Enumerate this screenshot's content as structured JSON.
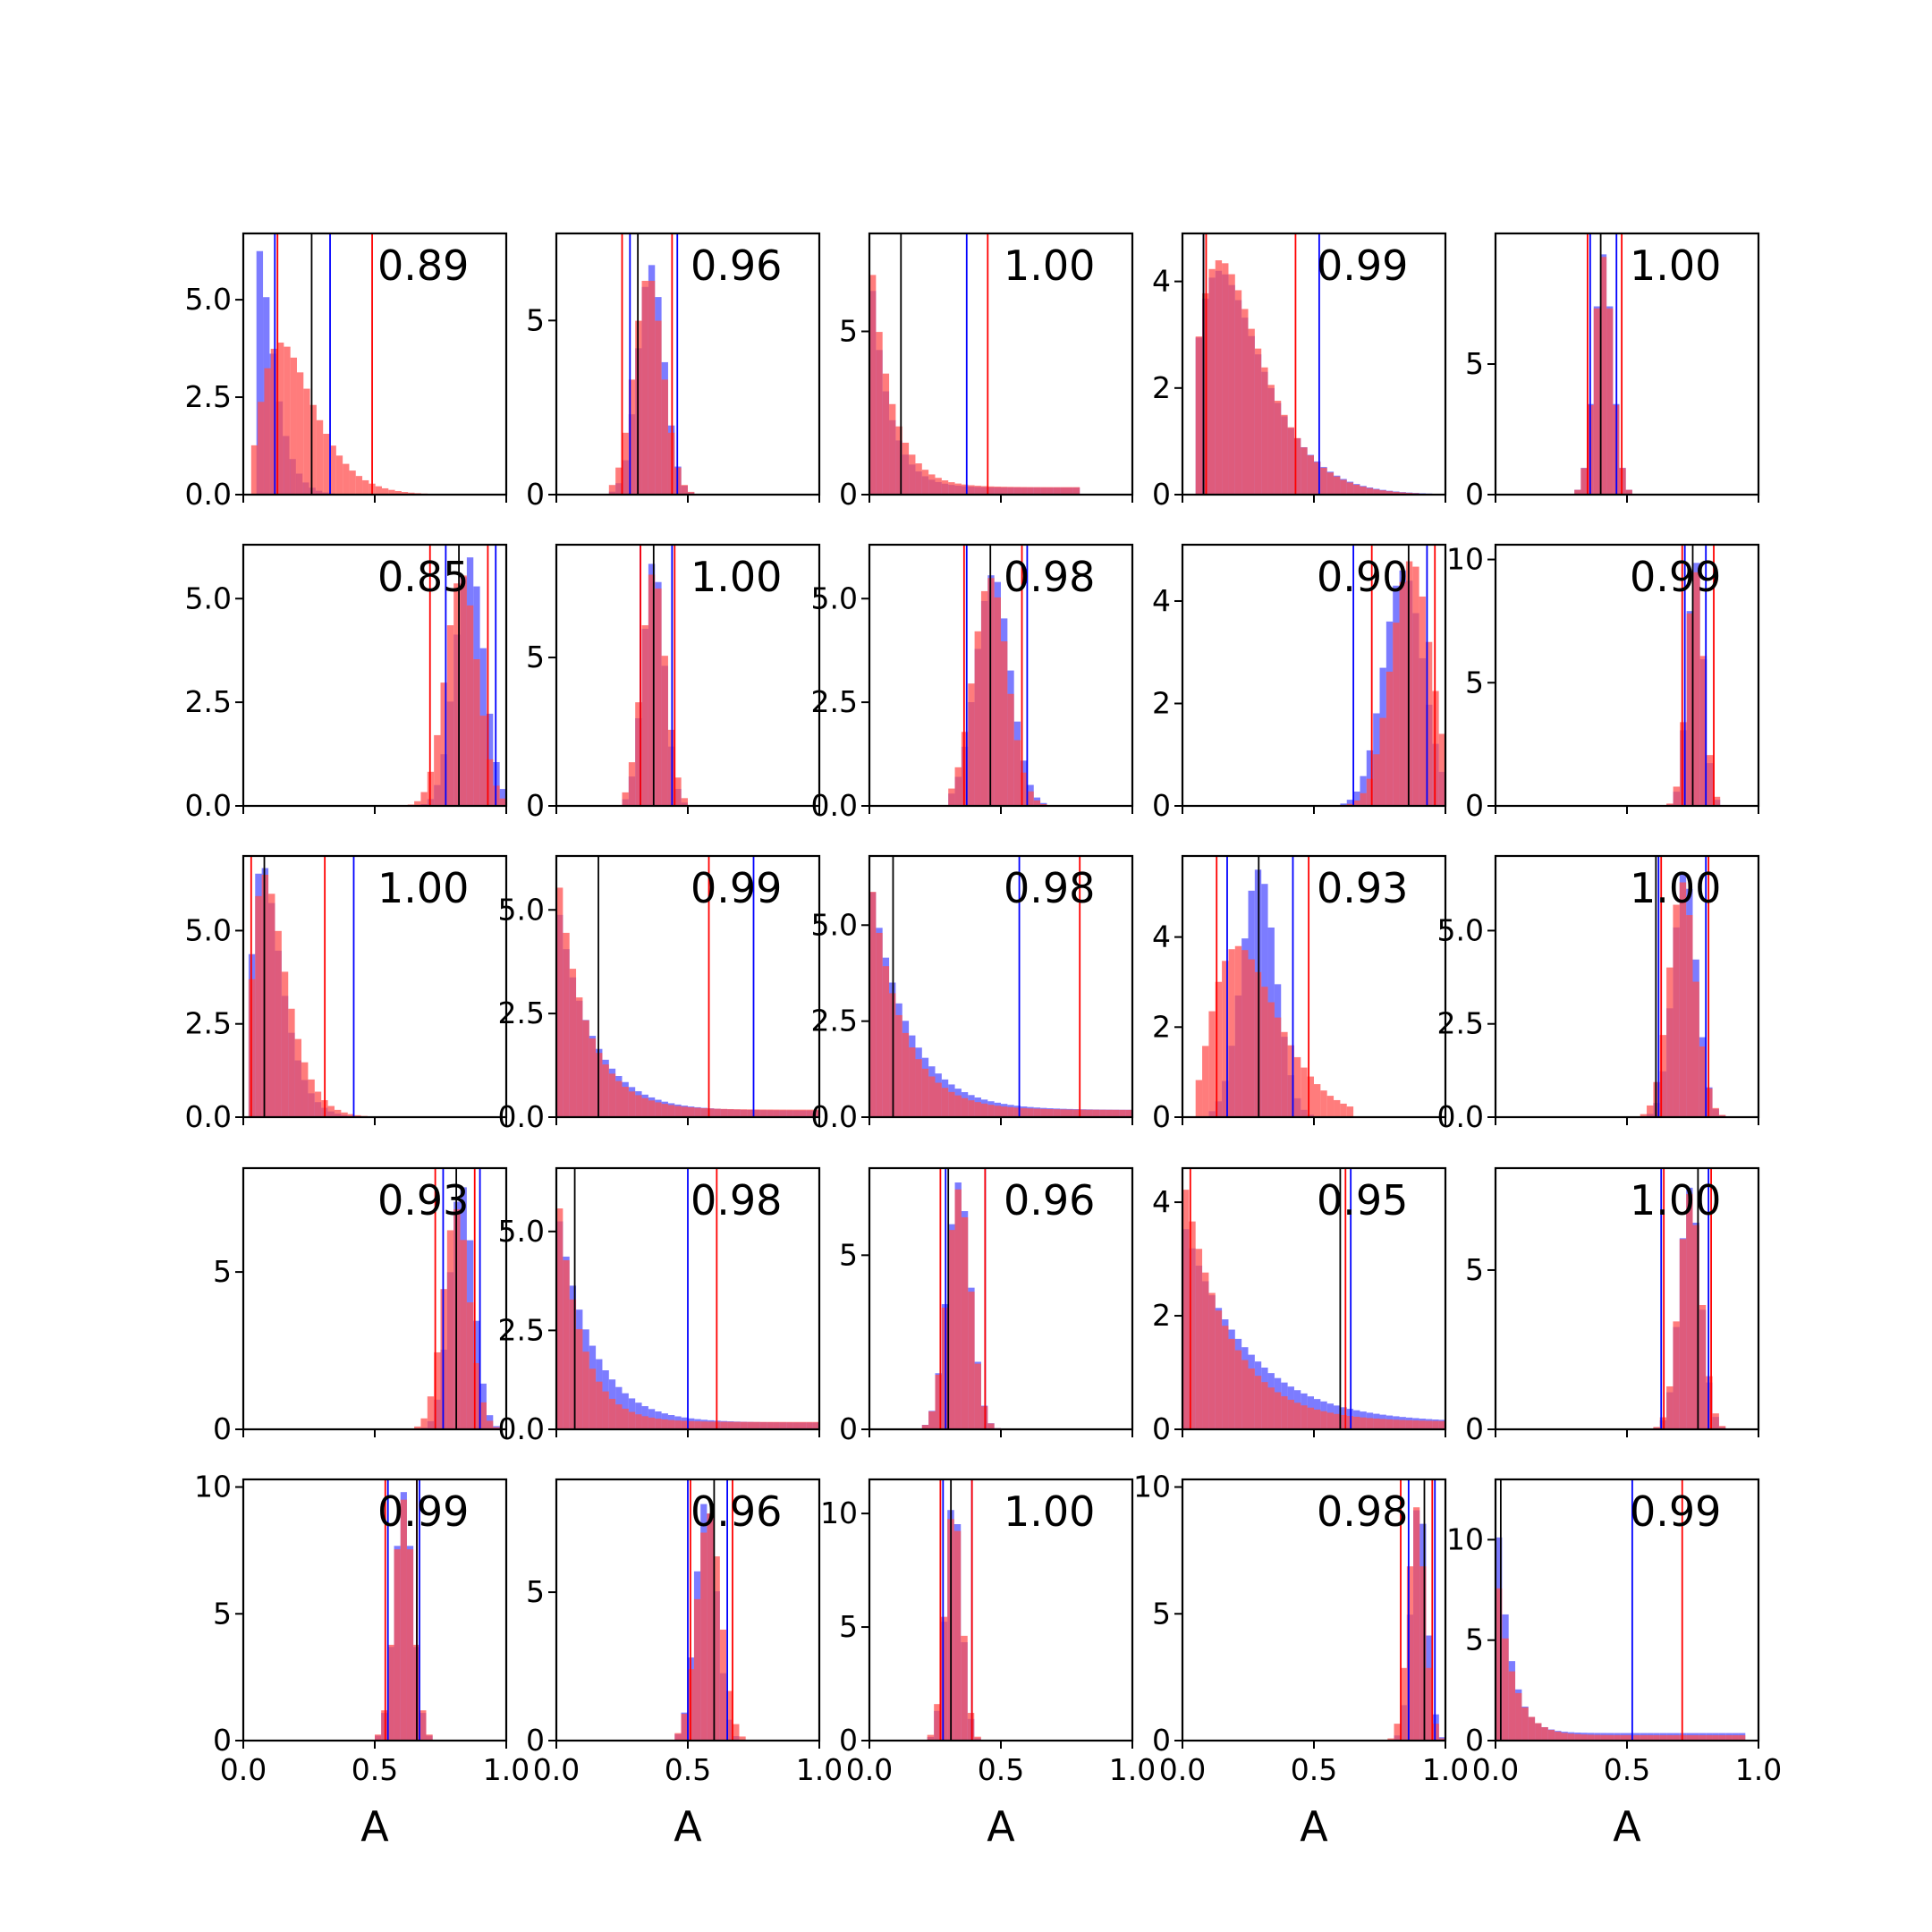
{
  "figure": {
    "rows": 5,
    "cols": 5,
    "colors": {
      "blue": "#0000ff",
      "red": "#ff0000",
      "black": "#000000",
      "blue_fill": "#5050ff",
      "red_fill": "#ff5050"
    },
    "x_axis_label": "A"
  },
  "chart_data": [
    {
      "type": "bar",
      "annotation": "0.89",
      "xlim": [
        0,
        1
      ],
      "ymax": 6.7,
      "yticks": [
        0,
        2.5,
        5
      ],
      "ytick_labels": [
        "0.0",
        "2.5",
        "5.0"
      ],
      "blue_shape": {
        "k": 2.5,
        "scale": 0.035,
        "amp": 6.4,
        "bins": [
          0.05,
          0.8
        ]
      },
      "red_shape": {
        "k": 3.2,
        "scale": 0.065,
        "amp": 3.9,
        "bins": [
          0.03,
          0.9
        ]
      },
      "blue_lines": [
        0.12,
        0.33
      ],
      "red_lines": [
        0.13,
        0.49
      ],
      "black_lines": [
        0.26
      ]
    },
    {
      "type": "bar",
      "annotation": "0.96",
      "xlim": [
        0,
        1
      ],
      "ymax": 7.5,
      "yticks": [
        0,
        5
      ],
      "ytick_labels": [
        "0",
        "5"
      ],
      "blue_shape": {
        "mu": 0.36,
        "sigma": 0.05,
        "amp": 6.6,
        "bins": [
          0.2,
          0.55
        ]
      },
      "red_shape": {
        "mu": 0.35,
        "sigma": 0.055,
        "amp": 6.3,
        "bins": [
          0.2,
          0.55
        ]
      },
      "blue_lines": [
        0.28,
        0.46
      ],
      "red_lines": [
        0.25,
        0.44
      ],
      "black_lines": [
        0.31
      ]
    },
    {
      "type": "bar",
      "annotation": "1.00",
      "xlim": [
        0,
        1
      ],
      "ymax": 8.0,
      "yticks": [
        0,
        5
      ],
      "ytick_labels": [
        "0",
        "5"
      ],
      "blue_shape": {
        "decay": 0.07,
        "amp": 7.2,
        "bins": [
          0,
          0.8
        ]
      },
      "red_shape": {
        "decay": 0.08,
        "amp": 7.6,
        "bins": [
          0,
          0.8
        ]
      },
      "blue_lines": [
        0.37
      ],
      "red_lines": [
        0.45
      ],
      "black_lines": [
        0.12
      ]
    },
    {
      "type": "bar",
      "annotation": "0.99",
      "xlim": [
        0,
        1
      ],
      "ymax": 4.9,
      "yticks": [
        0,
        2,
        4
      ],
      "ytick_labels": [
        "0",
        "2",
        "4"
      ],
      "blue_shape": {
        "k": 2.4,
        "scale": 0.1,
        "amp": 4.2,
        "bins": [
          0.05,
          0.95
        ]
      },
      "red_shape": {
        "k": 2.5,
        "scale": 0.095,
        "amp": 4.4,
        "bins": [
          0.05,
          0.9
        ]
      },
      "blue_lines": [
        0.08,
        0.52
      ],
      "red_lines": [
        0.09,
        0.43
      ],
      "black_lines": [
        0.08
      ]
    },
    {
      "type": "bar",
      "annotation": "1.00",
      "xlim": [
        0,
        1
      ],
      "ymax": 10.0,
      "yticks": [
        0,
        5
      ],
      "ytick_labels": [
        "0",
        "5"
      ],
      "blue_shape": {
        "mu": 0.41,
        "sigma": 0.035,
        "amp": 9.2,
        "bins": [
          0.3,
          0.52
        ]
      },
      "red_shape": {
        "mu": 0.41,
        "sigma": 0.035,
        "amp": 9.1,
        "bins": [
          0.3,
          0.52
        ]
      },
      "blue_lines": [
        0.36,
        0.46
      ],
      "red_lines": [
        0.35,
        0.48
      ],
      "black_lines": [
        0.4
      ]
    },
    {
      "type": "bar",
      "annotation": "0.85",
      "xlim": [
        0,
        1
      ],
      "ymax": 6.3,
      "yticks": [
        0,
        2.5,
        5
      ],
      "ytick_labels": [
        "0.0",
        "2.5",
        "5.0"
      ],
      "blue_shape": {
        "mu": 0.86,
        "sigma": 0.055,
        "amp": 6.0,
        "bins": [
          0.6,
          1.0
        ]
      },
      "red_shape": {
        "mu": 0.83,
        "sigma": 0.06,
        "amp": 5.6,
        "bins": [
          0.6,
          1.0
        ]
      },
      "blue_lines": [
        0.77,
        0.96
      ],
      "red_lines": [
        0.71,
        0.93
      ],
      "black_lines": [
        0.82
      ]
    },
    {
      "type": "bar",
      "annotation": "1.00",
      "xlim": [
        0,
        1
      ],
      "ymax": 8.8,
      "yticks": [
        0,
        5
      ],
      "ytick_labels": [
        "0",
        "5"
      ],
      "blue_shape": {
        "mu": 0.37,
        "sigma": 0.04,
        "amp": 8.3,
        "bins": [
          0.25,
          0.5
        ]
      },
      "red_shape": {
        "mu": 0.37,
        "sigma": 0.045,
        "amp": 7.9,
        "bins": [
          0.25,
          0.5
        ]
      },
      "blue_lines": [
        0.32,
        0.44
      ],
      "red_lines": [
        0.32,
        0.45
      ],
      "black_lines": [
        0.37
      ]
    },
    {
      "type": "bar",
      "annotation": "0.98",
      "xlim": [
        0,
        1
      ],
      "ymax": 6.3,
      "yticks": [
        0,
        2.5,
        5
      ],
      "ytick_labels": [
        "0.0",
        "2.5",
        "5.0"
      ],
      "blue_shape": {
        "mu": 0.47,
        "sigma": 0.065,
        "amp": 5.6,
        "bins": [
          0.3,
          0.7
        ]
      },
      "red_shape": {
        "mu": 0.46,
        "sigma": 0.065,
        "amp": 5.5,
        "bins": [
          0.3,
          0.7
        ]
      },
      "blue_lines": [
        0.37,
        0.6
      ],
      "red_lines": [
        0.36,
        0.58
      ],
      "black_lines": [
        0.46
      ]
    },
    {
      "type": "bar",
      "annotation": "0.90",
      "xlim": [
        0,
        1
      ],
      "ymax": 5.1,
      "yticks": [
        0,
        2,
        4
      ],
      "ytick_labels": [
        "0",
        "2",
        "4"
      ],
      "blue_shape": {
        "mu": 0.84,
        "sigma": 0.075,
        "amp": 4.6,
        "bins": [
          0.55,
          1.0
        ]
      },
      "red_shape": {
        "mu": 0.87,
        "sigma": 0.075,
        "amp": 4.8,
        "bins": [
          0.55,
          1.0
        ]
      },
      "blue_lines": [
        0.65,
        0.93
      ],
      "red_lines": [
        0.72,
        0.96
      ],
      "black_lines": [
        0.86
      ]
    },
    {
      "type": "bar",
      "annotation": "0.99",
      "xlim": [
        0,
        1
      ],
      "ymax": 10.6,
      "yticks": [
        0,
        5,
        10
      ],
      "ytick_labels": [
        "0",
        "5",
        "10"
      ],
      "blue_shape": {
        "mu": 0.76,
        "sigma": 0.03,
        "amp": 10.0,
        "bins": [
          0.65,
          0.88
        ]
      },
      "red_shape": {
        "mu": 0.76,
        "sigma": 0.032,
        "amp": 9.6,
        "bins": [
          0.65,
          0.88
        ]
      },
      "blue_lines": [
        0.72,
        0.8
      ],
      "red_lines": [
        0.71,
        0.83
      ],
      "black_lines": [
        0.75
      ]
    },
    {
      "type": "bar",
      "annotation": "1.00",
      "xlim": [
        0,
        1
      ],
      "ymax": 7.0,
      "yticks": [
        0,
        2.5,
        5
      ],
      "ytick_labels": [
        "0.0",
        "2.5",
        "5.0"
      ],
      "blue_shape": {
        "k": 2.8,
        "scale": 0.04,
        "amp": 6.8,
        "bins": [
          0.02,
          1.0
        ]
      },
      "red_shape": {
        "k": 2.8,
        "scale": 0.045,
        "amp": 6.5,
        "bins": [
          0.02,
          0.9
        ]
      },
      "blue_lines": [
        0.42
      ],
      "red_lines": [
        0.03,
        0.31
      ],
      "black_lines": [
        0.08
      ]
    },
    {
      "type": "bar",
      "annotation": "0.99",
      "xlim": [
        0,
        1
      ],
      "ymax": 6.3,
      "yticks": [
        0,
        2.5,
        5
      ],
      "ytick_labels": [
        "0.0",
        "2.5",
        "5.0"
      ],
      "blue_shape": {
        "decay": 0.13,
        "amp": 5.2,
        "bins": [
          0,
          1.0
        ]
      },
      "red_shape": {
        "decay": 0.11,
        "amp": 6.0,
        "bins": [
          0,
          1.0
        ]
      },
      "blue_lines": [
        0.75
      ],
      "red_lines": [
        0.58
      ],
      "black_lines": [
        0.16
      ]
    },
    {
      "type": "bar",
      "annotation": "0.98",
      "xlim": [
        0,
        1
      ],
      "ymax": 6.8,
      "yticks": [
        0,
        2.5,
        5
      ],
      "ytick_labels": [
        "0.0",
        "2.5",
        "5.0"
      ],
      "blue_shape": {
        "decay": 0.14,
        "amp": 6.2,
        "bins": [
          0,
          1.0
        ]
      },
      "red_shape": {
        "decay": 0.12,
        "amp": 6.3,
        "bins": [
          0,
          1.0
        ]
      },
      "blue_lines": [
        0.57
      ],
      "red_lines": [
        0.8
      ],
      "black_lines": [
        0.09
      ]
    },
    {
      "type": "bar",
      "annotation": "0.93",
      "xlim": [
        0,
        1
      ],
      "ymax": 5.8,
      "yticks": [
        0,
        2,
        4
      ],
      "ytick_labels": [
        "0",
        "2",
        "4"
      ],
      "blue_shape": {
        "mu": 0.29,
        "sigma": 0.065,
        "amp": 5.5,
        "bins": [
          0.1,
          0.6
        ]
      },
      "red_shape": {
        "k": 4,
        "scale": 0.07,
        "amp": 3.8,
        "bins": [
          0.05,
          0.65
        ]
      },
      "blue_lines": [
        0.17,
        0.42
      ],
      "red_lines": [
        0.13,
        0.48
      ],
      "black_lines": [
        0.29
      ]
    },
    {
      "type": "bar",
      "annotation": "1.00",
      "xlim": [
        0,
        1
      ],
      "ymax": 7.0,
      "yticks": [
        0,
        2.5,
        5
      ],
      "ytick_labels": [
        "0.0",
        "2.5",
        "5.0"
      ],
      "blue_shape": {
        "mu": 0.72,
        "sigma": 0.045,
        "amp": 6.6,
        "bins": [
          0.55,
          0.9
        ]
      },
      "red_shape": {
        "mu": 0.71,
        "sigma": 0.05,
        "amp": 6.3,
        "bins": [
          0.55,
          0.9
        ]
      },
      "blue_lines": [
        0.62,
        0.8
      ],
      "red_lines": [
        0.63,
        0.81
      ],
      "black_lines": [
        0.61
      ]
    },
    {
      "type": "bar",
      "annotation": "0.93",
      "xlim": [
        0,
        1
      ],
      "ymax": 8.3,
      "yticks": [
        0,
        5
      ],
      "ytick_labels": [
        "0",
        "5"
      ],
      "blue_shape": {
        "mu": 0.83,
        "sigma": 0.045,
        "amp": 7.8,
        "bins": [
          0.65,
          1.0
        ]
      },
      "red_shape": {
        "mu": 0.81,
        "sigma": 0.05,
        "amp": 7.0,
        "bins": [
          0.65,
          1.0
        ]
      },
      "blue_lines": [
        0.76,
        0.9
      ],
      "red_lines": [
        0.73,
        0.88
      ],
      "black_lines": [
        0.81
      ]
    },
    {
      "type": "bar",
      "annotation": "0.98",
      "xlim": [
        0,
        1
      ],
      "ymax": 6.6,
      "yticks": [
        0,
        2.5,
        5
      ],
      "ytick_labels": [
        "0.0",
        "2.5",
        "5.0"
      ],
      "blue_shape": {
        "decay": 0.13,
        "amp": 5.6,
        "bins": [
          0,
          1.0
        ]
      },
      "red_shape": {
        "decay": 0.09,
        "amp": 6.2,
        "bins": [
          0,
          1.0
        ]
      },
      "blue_lines": [
        0.5
      ],
      "red_lines": [
        0.61
      ],
      "black_lines": [
        0.07
      ]
    },
    {
      "type": "bar",
      "annotation": "0.96",
      "xlim": [
        0,
        1
      ],
      "ymax": 7.5,
      "yticks": [
        0,
        5
      ],
      "ytick_labels": [
        "0",
        "5"
      ],
      "blue_shape": {
        "mu": 0.34,
        "sigma": 0.045,
        "amp": 7.1,
        "bins": [
          0.2,
          0.5
        ]
      },
      "red_shape": {
        "mu": 0.34,
        "sigma": 0.045,
        "amp": 6.9,
        "bins": [
          0.2,
          0.5
        ]
      },
      "blue_lines": [
        0.29,
        0.44
      ],
      "red_lines": [
        0.27,
        0.44
      ],
      "black_lines": [
        0.3
      ]
    },
    {
      "type": "bar",
      "annotation": "0.95",
      "xlim": [
        0,
        1
      ],
      "ymax": 4.6,
      "yticks": [
        0,
        2,
        4
      ],
      "ytick_labels": [
        "0",
        "2",
        "4"
      ],
      "blue_shape": {
        "decay": 0.24,
        "amp": 3.6,
        "bins": [
          0,
          1.0
        ]
      },
      "red_shape": {
        "decay": 0.17,
        "amp": 4.4,
        "bins": [
          0,
          1.0
        ]
      },
      "blue_lines": [
        0.64
      ],
      "red_lines": [
        0.03,
        0.62
      ],
      "black_lines": [
        0.6
      ]
    },
    {
      "type": "bar",
      "annotation": "1.00",
      "xlim": [
        0,
        1
      ],
      "ymax": 8.2,
      "yticks": [
        0,
        5
      ],
      "ytick_labels": [
        "0",
        "5"
      ],
      "blue_shape": {
        "mu": 0.74,
        "sigma": 0.04,
        "amp": 7.6,
        "bins": [
          0.6,
          0.9
        ]
      },
      "red_shape": {
        "mu": 0.74,
        "sigma": 0.042,
        "amp": 7.4,
        "bins": [
          0.6,
          0.9
        ]
      },
      "blue_lines": [
        0.63,
        0.81
      ],
      "red_lines": [
        0.64,
        0.82
      ],
      "black_lines": [
        0.77
      ]
    },
    {
      "type": "bar",
      "annotation": "0.99",
      "xlim": [
        0,
        1
      ],
      "ymax": 10.3,
      "yticks": [
        0,
        5,
        10
      ],
      "ytick_labels": [
        "0",
        "5",
        "10"
      ],
      "blue_shape": {
        "mu": 0.61,
        "sigma": 0.035,
        "amp": 9.8,
        "bins": [
          0.5,
          0.72
        ]
      },
      "red_shape": {
        "mu": 0.61,
        "sigma": 0.036,
        "amp": 9.5,
        "bins": [
          0.5,
          0.72
        ]
      },
      "blue_lines": [
        0.55,
        0.67
      ],
      "red_lines": [
        0.54,
        0.66
      ],
      "black_lines": [
        0.66
      ]
    },
    {
      "type": "bar",
      "annotation": "0.96",
      "xlim": [
        0,
        1
      ],
      "ymax": 8.8,
      "yticks": [
        0,
        5
      ],
      "ytick_labels": [
        "0",
        "5"
      ],
      "blue_shape": {
        "mu": 0.57,
        "sigma": 0.04,
        "amp": 8.2,
        "bins": [
          0.45,
          0.72
        ]
      },
      "red_shape": {
        "mu": 0.58,
        "sigma": 0.045,
        "amp": 7.7,
        "bins": [
          0.45,
          0.72
        ]
      },
      "blue_lines": [
        0.5,
        0.65
      ],
      "red_lines": [
        0.51,
        0.67
      ],
      "black_lines": [
        0.6
      ]
    },
    {
      "type": "bar",
      "annotation": "1.00",
      "xlim": [
        0,
        1
      ],
      "ymax": 11.5,
      "yticks": [
        0,
        5,
        10
      ],
      "ytick_labels": [
        "0",
        "5",
        "10"
      ],
      "blue_shape": {
        "mu": 0.32,
        "sigma": 0.03,
        "amp": 10.8,
        "bins": [
          0.22,
          0.45
        ]
      },
      "red_shape": {
        "mu": 0.32,
        "sigma": 0.032,
        "amp": 10.3,
        "bins": [
          0.22,
          0.45
        ]
      },
      "blue_lines": [
        0.28,
        0.39
      ],
      "red_lines": [
        0.27,
        0.39
      ],
      "black_lines": [
        0.31
      ]
    },
    {
      "type": "bar",
      "annotation": "0.98",
      "xlim": [
        0,
        1
      ],
      "ymax": 10.3,
      "yticks": [
        0,
        5,
        10
      ],
      "ytick_labels": [
        "0",
        "5",
        "10"
      ],
      "blue_shape": {
        "mu": 0.9,
        "sigma": 0.03,
        "amp": 9.6,
        "bins": [
          0.78,
          1.0
        ]
      },
      "red_shape": {
        "mu": 0.89,
        "sigma": 0.032,
        "amp": 9.2,
        "bins": [
          0.78,
          1.0
        ]
      },
      "blue_lines": [
        0.86,
        0.96
      ],
      "red_lines": [
        0.83,
        0.95
      ],
      "black_lines": [
        0.92
      ]
    },
    {
      "type": "bar",
      "annotation": "0.99",
      "xlim": [
        0,
        1
      ],
      "ymax": 13.0,
      "yticks": [
        0,
        5,
        10
      ],
      "ytick_labels": [
        "0",
        "5",
        "10"
      ],
      "blue_shape": {
        "decay": 0.05,
        "amp": 12.5,
        "bins": [
          0,
          0.95
        ]
      },
      "red_shape": {
        "decay": 0.06,
        "amp": 9.0,
        "bins": [
          0,
          0.95
        ]
      },
      "blue_lines": [
        0.52
      ],
      "red_lines": [
        0.71
      ],
      "black_lines": [
        0.02
      ]
    }
  ]
}
